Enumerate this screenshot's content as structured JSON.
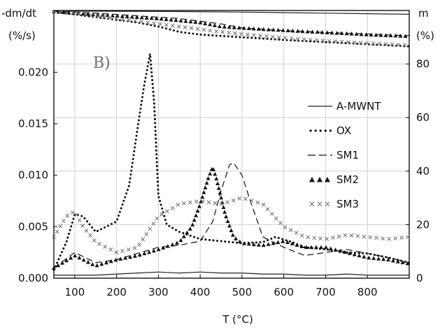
{
  "chart_data": {
    "type": "line",
    "panel_label": "B)",
    "xlabel": "T (°C)",
    "ylabel_left_line1": "-dm/dt",
    "ylabel_left_line2": "(%/s)",
    "ylabel_right_line1": "m",
    "ylabel_right_line2": "(%)",
    "xlim": [
      50,
      900
    ],
    "ylim_left": [
      0,
      0.026
    ],
    "ylim_right": [
      0,
      100
    ],
    "x_ticks": [
      100,
      200,
      300,
      400,
      500,
      600,
      700,
      800
    ],
    "y_left_ticks": [
      0.0,
      0.005,
      0.01,
      0.015,
      0.02
    ],
    "y_left_tick_labels": [
      "0.000",
      "0.005",
      "0.010",
      "0.015",
      "0.020"
    ],
    "y_right_ticks": [
      0,
      20,
      40,
      60,
      80
    ],
    "y_right_tick_labels": [
      "0",
      "20",
      "40",
      "60",
      "80"
    ],
    "grid": true,
    "legend_position": "right",
    "rate_series": [
      {
        "name": "A-MWNT",
        "style": "solid",
        "x": [
          50,
          100,
          150,
          200,
          250,
          300,
          350,
          400,
          450,
          500,
          550,
          600,
          650,
          700,
          750,
          800,
          850,
          900
        ],
        "y": [
          0.0003,
          0.0003,
          0.0003,
          0.0004,
          0.0005,
          0.0006,
          0.0005,
          0.0006,
          0.0005,
          0.0005,
          0.0004,
          0.0004,
          0.0003,
          0.0003,
          0.0004,
          0.0003,
          0.0003,
          0.0003
        ]
      },
      {
        "name": "OX",
        "style": "dotted",
        "x": [
          50,
          80,
          100,
          120,
          150,
          200,
          230,
          250,
          265,
          280,
          290,
          300,
          320,
          350,
          400,
          450,
          500,
          550,
          580,
          620,
          650,
          700,
          750,
          800,
          850,
          900
        ],
        "y": [
          0.0008,
          0.0035,
          0.0062,
          0.006,
          0.0045,
          0.0055,
          0.009,
          0.0145,
          0.0185,
          0.0218,
          0.017,
          0.008,
          0.0052,
          0.0045,
          0.0038,
          0.0036,
          0.0034,
          0.0035,
          0.004,
          0.0035,
          0.003,
          0.0028,
          0.0025,
          0.0024,
          0.002,
          0.0015
        ]
      },
      {
        "name": "SM1",
        "style": "dashed",
        "x": [
          50,
          100,
          150,
          200,
          250,
          300,
          350,
          400,
          430,
          450,
          470,
          480,
          500,
          520,
          550,
          600,
          650,
          700,
          750,
          800,
          850,
          900
        ],
        "y": [
          0.001,
          0.0025,
          0.0015,
          0.0018,
          0.0024,
          0.003,
          0.0032,
          0.0036,
          0.0055,
          0.0085,
          0.011,
          0.0112,
          0.01,
          0.0075,
          0.004,
          0.003,
          0.0022,
          0.0025,
          0.0028,
          0.0024,
          0.002,
          0.0015
        ]
      },
      {
        "name": "SM2",
        "style": "triangle",
        "x": [
          50,
          100,
          150,
          200,
          250,
          300,
          350,
          380,
          400,
          420,
          430,
          440,
          460,
          480,
          500,
          550,
          600,
          650,
          700,
          750,
          800,
          850,
          900
        ],
        "y": [
          0.001,
          0.0022,
          0.0012,
          0.0018,
          0.0022,
          0.0028,
          0.0035,
          0.005,
          0.0072,
          0.0098,
          0.0108,
          0.0095,
          0.0062,
          0.004,
          0.0034,
          0.0032,
          0.0036,
          0.003,
          0.003,
          0.0025,
          0.002,
          0.0018,
          0.0014
        ]
      },
      {
        "name": "SM3",
        "style": "cross",
        "x": [
          50,
          80,
          100,
          120,
          150,
          200,
          250,
          300,
          350,
          400,
          450,
          500,
          550,
          600,
          650,
          700,
          750,
          800,
          850,
          900
        ],
        "y": [
          0.004,
          0.006,
          0.0065,
          0.005,
          0.0035,
          0.0025,
          0.003,
          0.006,
          0.0072,
          0.0075,
          0.0072,
          0.0078,
          0.0072,
          0.005,
          0.004,
          0.0038,
          0.0042,
          0.004,
          0.0038,
          0.004
        ]
      }
    ],
    "mass_series": [
      {
        "name": "A-MWNT",
        "style": "solid",
        "x": [
          50,
          200,
          350,
          500,
          600,
          700,
          800,
          900
        ],
        "y": [
          99.8,
          99.7,
          99.6,
          99.4,
          99.2,
          99.0,
          98.8,
          98.6
        ]
      },
      {
        "name": "OX",
        "style": "dotted",
        "x": [
          50,
          100,
          150,
          200,
          250,
          300,
          350,
          400,
          450,
          500,
          550,
          600,
          650,
          700,
          750,
          800,
          850,
          900
        ],
        "y": [
          99.5,
          98.5,
          97.5,
          96.5,
          95.5,
          94.0,
          92.0,
          91.0,
          90.5,
          90.0,
          89.5,
          89.0,
          88.6,
          88.2,
          87.8,
          87.4,
          87.0,
          86.6
        ]
      },
      {
        "name": "SM1",
        "style": "dashed",
        "x": [
          50,
          150,
          250,
          350,
          450,
          500,
          600,
          700,
          800,
          900
        ],
        "y": [
          99.7,
          99.0,
          98.0,
          97.0,
          95.0,
          93.5,
          92.5,
          91.8,
          91.2,
          90.6
        ]
      },
      {
        "name": "SM2",
        "style": "triangle",
        "x": [
          50,
          100,
          200,
          300,
          400,
          450,
          500,
          550,
          600,
          650,
          700,
          750,
          800,
          850,
          900
        ],
        "y": [
          99.6,
          99.0,
          98.0,
          97.0,
          95.5,
          94.0,
          93.5,
          93.0,
          92.6,
          92.2,
          91.8,
          91.4,
          91.0,
          90.7,
          90.4
        ]
      },
      {
        "name": "SM3",
        "style": "cross",
        "x": [
          50,
          100,
          150,
          200,
          250,
          300,
          350,
          400,
          450,
          500,
          550,
          600,
          650,
          700,
          750,
          800,
          850,
          900
        ],
        "y": [
          99.5,
          99.0,
          98.0,
          97.0,
          96.0,
          95.0,
          94.0,
          93.0,
          92.0,
          91.2,
          90.5,
          89.8,
          89.2,
          88.7,
          88.2,
          87.8,
          87.4,
          87.0
        ]
      }
    ]
  }
}
